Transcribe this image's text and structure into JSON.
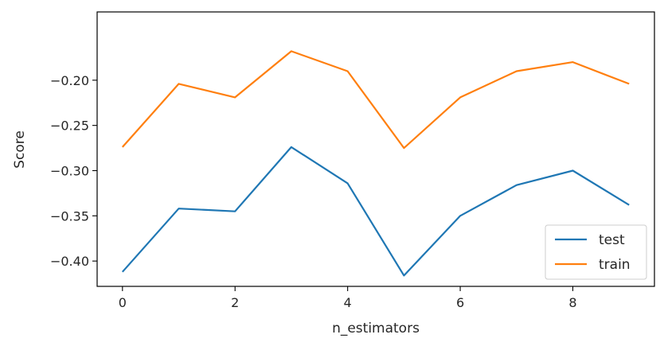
{
  "chart_data": {
    "type": "line",
    "title": "",
    "xlabel": "n_estimators",
    "ylabel": "Score",
    "x": [
      0,
      1,
      2,
      3,
      4,
      5,
      6,
      7,
      8,
      9
    ],
    "xlim": [
      -0.45,
      9.45
    ],
    "ylim": [
      -0.428,
      -0.1245
    ],
    "xticks": [
      0,
      2,
      4,
      6,
      8
    ],
    "xtick_labels": [
      "0",
      "2",
      "4",
      "6",
      "8"
    ],
    "yticks": [
      -0.4,
      -0.35,
      -0.3,
      -0.25,
      -0.2
    ],
    "ytick_labels": [
      "−0.40",
      "−0.35",
      "−0.30",
      "−0.25",
      "−0.20"
    ],
    "grid": false,
    "legend_position": "bottom-right",
    "series": [
      {
        "name": "test",
        "color": "#1f77b4",
        "values": [
          -0.412,
          -0.342,
          -0.345,
          -0.274,
          -0.314,
          -0.416,
          -0.35,
          -0.316,
          -0.3,
          -0.338
        ]
      },
      {
        "name": "train",
        "color": "#ff7f0e",
        "values": [
          -0.274,
          -0.204,
          -0.219,
          -0.168,
          -0.19,
          -0.275,
          -0.219,
          -0.19,
          -0.18,
          -0.204
        ]
      }
    ]
  }
}
